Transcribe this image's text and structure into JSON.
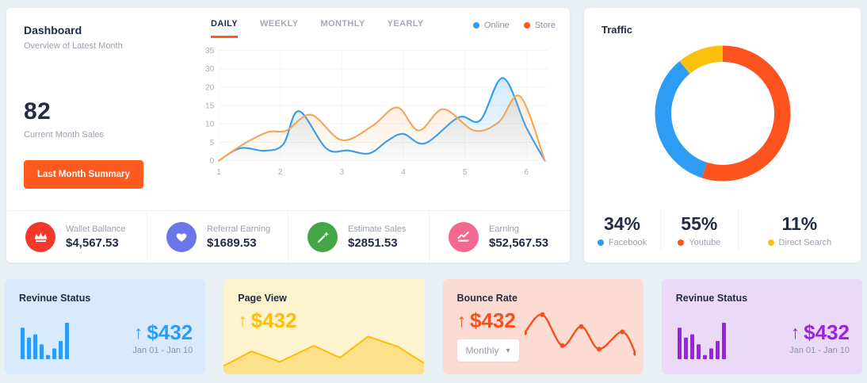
{
  "dashboard_card": {
    "title": "Dashboard",
    "subtitle": "Overview of Latest Month",
    "big_number": "82",
    "big_number_label": "Current Month Sales",
    "summary_button": "Last Month Summary",
    "tabs": [
      {
        "label": "DAILY",
        "active": true
      },
      {
        "label": "WEEKLY",
        "active": false
      },
      {
        "label": "MONTHLY",
        "active": false
      },
      {
        "label": "YEARLY",
        "active": false
      }
    ],
    "legend": [
      {
        "label": "Online",
        "color": "#2e9bf6"
      },
      {
        "label": "Store",
        "color": "#fd5a1e"
      }
    ],
    "stats": [
      {
        "label": "Wallet Ballance",
        "value": "$4,567.53",
        "icon": "crown-icon",
        "color": "#f4392c"
      },
      {
        "label": "Referral Earning",
        "value": "$1689.53",
        "icon": "heart-icon",
        "color": "#6b77e8"
      },
      {
        "label": "Estimate Sales",
        "value": "$2851.53",
        "icon": "magic-wand-icon",
        "color": "#45a649"
      },
      {
        "label": "Earning",
        "value": "$52,567.53",
        "icon": "line-chart-icon",
        "color": "#f2688f"
      }
    ]
  },
  "traffic_card": {
    "title": "Traffic",
    "sources": [
      {
        "pct": "34%",
        "label": "Facebook",
        "color": "#2e9cf5"
      },
      {
        "pct": "55%",
        "label": "Youtube",
        "color": "#fd541f"
      },
      {
        "pct": "11%",
        "label": "Direct Search",
        "color": "#fcc10c"
      }
    ]
  },
  "bottom_cards": [
    {
      "title": "Revinue Status",
      "arrow": "↑",
      "amount": "$432",
      "range": "Jan 01 - Jan 10",
      "accent": "#2e9bf6",
      "bg": "#d9eafc"
    },
    {
      "title": "Page View",
      "arrow": "↑",
      "amount": "$432",
      "accent": "#fcbe0a",
      "bg": "#fdf3cf"
    },
    {
      "title": "Bounce Rate",
      "arrow": "↑",
      "amount": "$432",
      "dropdown": "Monthly",
      "chevron": "▾",
      "accent": "#f4511e",
      "bg": "#fcdcd2"
    },
    {
      "title": "Revinue Status",
      "arrow": "↑",
      "amount": "$432",
      "range": "Jan 01 - Jan 10",
      "accent": "#9b20e8",
      "bg": "#ebd9f8"
    }
  ],
  "chart_data": [
    {
      "name": "sales-line-chart",
      "type": "line",
      "title": "",
      "xlabel": "",
      "ylabel": "",
      "x_ticks": [
        1,
        2,
        3,
        4,
        5,
        6
      ],
      "y_ticks": [
        0,
        5,
        10,
        15,
        20,
        30,
        35
      ],
      "x_range": [
        1,
        6.35
      ],
      "grid": true,
      "legend_position": "top-right",
      "series": [
        {
          "name": "Online",
          "color": "#2e9bf6",
          "points": [
            [
              1,
              0
            ],
            [
              1.35,
              3.4
            ],
            [
              1.75,
              2.7
            ],
            [
              2.05,
              4.5
            ],
            [
              2.3,
              13.5
            ],
            [
              2.75,
              3.3
            ],
            [
              3.1,
              2.8
            ],
            [
              3.45,
              2.0
            ],
            [
              3.75,
              5.5
            ],
            [
              4.0,
              7.3
            ],
            [
              4.35,
              4.7
            ],
            [
              4.9,
              11.8
            ],
            [
              5.25,
              11.0
            ],
            [
              5.62,
              25
            ],
            [
              6.0,
              9
            ],
            [
              6.3,
              0
            ]
          ]
        },
        {
          "name": "Store",
          "color": "#f5a55a",
          "points": [
            [
              1,
              0
            ],
            [
              1.4,
              4.5
            ],
            [
              1.8,
              7.8
            ],
            [
              2.1,
              8.2
            ],
            [
              2.5,
              12.5
            ],
            [
              3.0,
              5.6
            ],
            [
              3.5,
              9.5
            ],
            [
              3.9,
              14.5
            ],
            [
              4.25,
              8.2
            ],
            [
              4.65,
              14.0
            ],
            [
              5.15,
              8.2
            ],
            [
              5.55,
              10.5
            ],
            [
              5.9,
              17.5
            ],
            [
              6.3,
              0
            ]
          ]
        }
      ]
    },
    {
      "name": "traffic-donut",
      "type": "pie",
      "slices": [
        {
          "label": "Youtube",
          "value": 55,
          "color": "#fd541f"
        },
        {
          "label": "Facebook",
          "value": 34,
          "color": "#2e9cf5"
        },
        {
          "label": "Direct Search",
          "value": 11,
          "color": "#fcc10c"
        }
      ]
    },
    {
      "name": "revenue-bars",
      "type": "bar",
      "values": [
        38,
        26,
        30,
        18,
        5,
        13,
        22,
        44
      ]
    },
    {
      "name": "page-view-area",
      "type": "area",
      "points": [
        [
          0,
          82
        ],
        [
          14,
          50
        ],
        [
          28,
          73
        ],
        [
          45,
          38
        ],
        [
          58,
          64
        ],
        [
          72,
          18
        ],
        [
          87,
          40
        ],
        [
          100,
          76
        ]
      ]
    },
    {
      "name": "bounce-wave",
      "type": "line",
      "points": [
        [
          0,
          48
        ],
        [
          16,
          11
        ],
        [
          34,
          74
        ],
        [
          51,
          35
        ],
        [
          67,
          81
        ],
        [
          88,
          46
        ],
        [
          100,
          90
        ]
      ]
    }
  ]
}
